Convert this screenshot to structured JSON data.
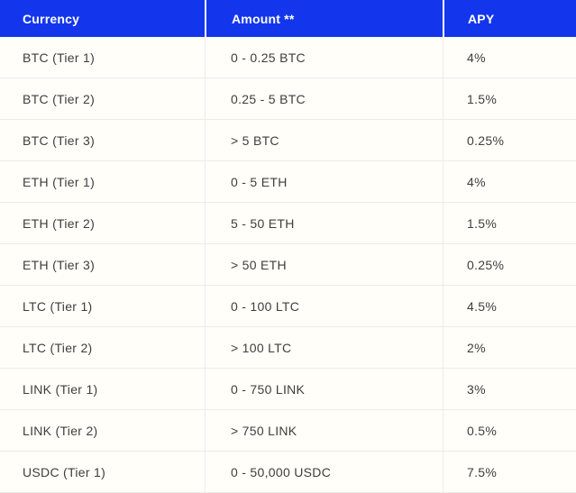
{
  "colors": {
    "header_background": "#1336ec",
    "header_text": "#ffffff",
    "body_background": "#fffef8",
    "body_text": "#3e3e3d",
    "row_divider": "#ebebe8",
    "column_divider": "#edece9",
    "header_column_divider": "#ffffff"
  },
  "table": {
    "columns": [
      {
        "label": "Currency"
      },
      {
        "label": "Amount **"
      },
      {
        "label": "APY"
      }
    ],
    "rows": [
      {
        "currency": "BTC (Tier 1)",
        "amount": "0 - 0.25 BTC",
        "apy": "4%"
      },
      {
        "currency": "BTC (Tier 2)",
        "amount": "0.25 - 5 BTC",
        "apy": "1.5%"
      },
      {
        "currency": "BTC (Tier 3)",
        "amount": "> 5 BTC",
        "apy": "0.25%"
      },
      {
        "currency": "ETH (Tier 1)",
        "amount": "0 - 5 ETH",
        "apy": "4%"
      },
      {
        "currency": "ETH (Tier 2)",
        "amount": "5 - 50 ETH",
        "apy": "1.5%"
      },
      {
        "currency": "ETH (Tier 3)",
        "amount": "> 50 ETH",
        "apy": "0.25%"
      },
      {
        "currency": "LTC (Tier 1)",
        "amount": "0 - 100 LTC",
        "apy": "4.5%"
      },
      {
        "currency": "LTC (Tier 2)",
        "amount": "> 100 LTC",
        "apy": "2%"
      },
      {
        "currency": "LINK (Tier 1)",
        "amount": "0 - 750 LINK",
        "apy": "3%"
      },
      {
        "currency": "LINK (Tier 2)",
        "amount": "> 750 LINK",
        "apy": "0.5%"
      },
      {
        "currency": "USDC (Tier 1)",
        "amount": "0 - 50,000 USDC",
        "apy": "7.5%"
      }
    ]
  }
}
